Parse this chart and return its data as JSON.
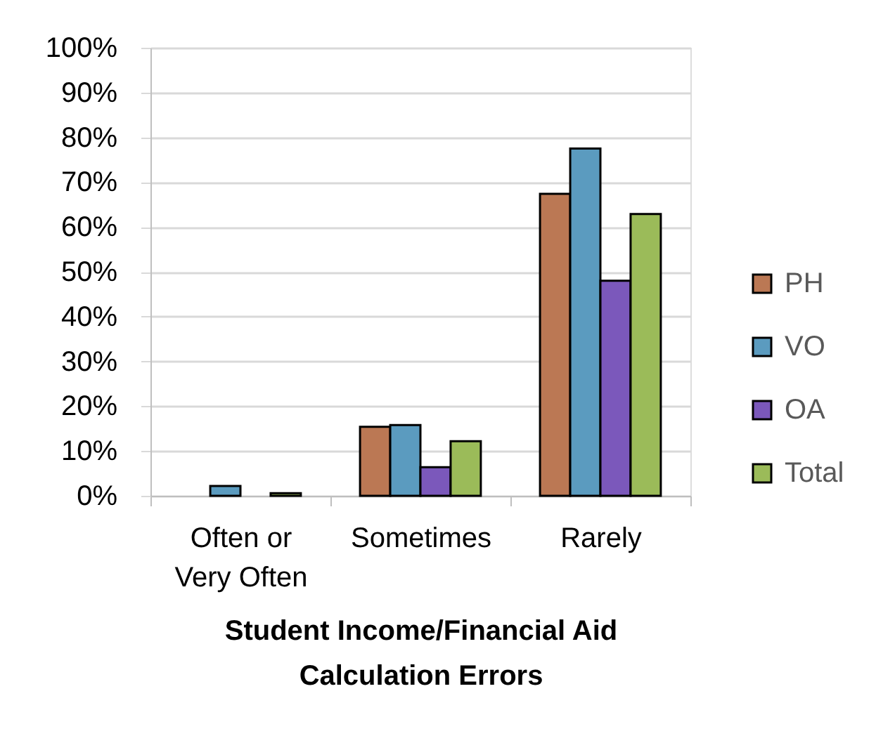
{
  "chart_data": {
    "type": "bar",
    "xlabel": "Student Income/Financial Aid Calculation Errors",
    "categories": [
      "Often or Very Often",
      "Sometimes",
      "Rarely"
    ],
    "series": [
      {
        "name": "PH",
        "color": "#bb7854",
        "values": [
          null,
          15.4,
          67.4
        ]
      },
      {
        "name": "VO",
        "color": "#5b9bbf",
        "values": [
          2.2,
          15.8,
          77.5
        ]
      },
      {
        "name": "OA",
        "color": "#7b58bb",
        "values": [
          null,
          6.4,
          48.0
        ]
      },
      {
        "name": "Total",
        "color": "#9bbb59",
        "values": [
          0.6,
          12.2,
          62.9
        ]
      }
    ],
    "ylim": [
      0,
      100
    ],
    "yticks": [
      {
        "value": 0,
        "label": "0%"
      },
      {
        "value": 10,
        "label": "10%"
      },
      {
        "value": 20,
        "label": "20%"
      },
      {
        "value": 30,
        "label": "30%"
      },
      {
        "value": 40,
        "label": "40%"
      },
      {
        "value": 50,
        "label": "50%"
      },
      {
        "value": 60,
        "label": "60%"
      },
      {
        "value": 70,
        "label": "70%"
      },
      {
        "value": 80,
        "label": "80%"
      },
      {
        "value": 90,
        "label": "90%"
      },
      {
        "value": 100,
        "label": "100%"
      }
    ],
    "grid": "y",
    "legend": "right"
  }
}
